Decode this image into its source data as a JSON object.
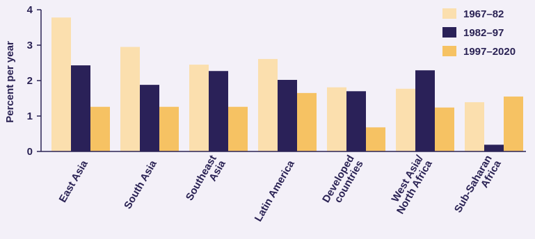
{
  "chart_data": {
    "type": "bar",
    "title": "",
    "xlabel": "",
    "ylabel": "Percent per year",
    "ylim": [
      0,
      4
    ],
    "yticks": [
      "0",
      "1",
      "2",
      "3",
      "4"
    ],
    "grid": false,
    "legend_position": "top-right",
    "categories": [
      [
        "East Asia"
      ],
      [
        "South Asia"
      ],
      [
        "Southeast",
        "Asia"
      ],
      [
        "Latin America"
      ],
      [
        "Developed",
        "countries"
      ],
      [
        "West Asia/",
        "North Africa"
      ],
      [
        "Sub-Saharan",
        "Africa"
      ]
    ],
    "series": [
      {
        "name": "1967–82",
        "color": "#fbdfae",
        "values": [
          3.78,
          2.95,
          2.45,
          2.61,
          1.81,
          1.77,
          1.39
        ]
      },
      {
        "name": "1982–97",
        "color": "#2a2158",
        "values": [
          2.43,
          1.88,
          2.27,
          2.02,
          1.7,
          2.29,
          0.19
        ]
      },
      {
        "name": "1997–2020",
        "color": "#f6c263",
        "values": [
          1.26,
          1.26,
          1.26,
          1.65,
          0.68,
          1.24,
          1.55
        ]
      }
    ]
  }
}
